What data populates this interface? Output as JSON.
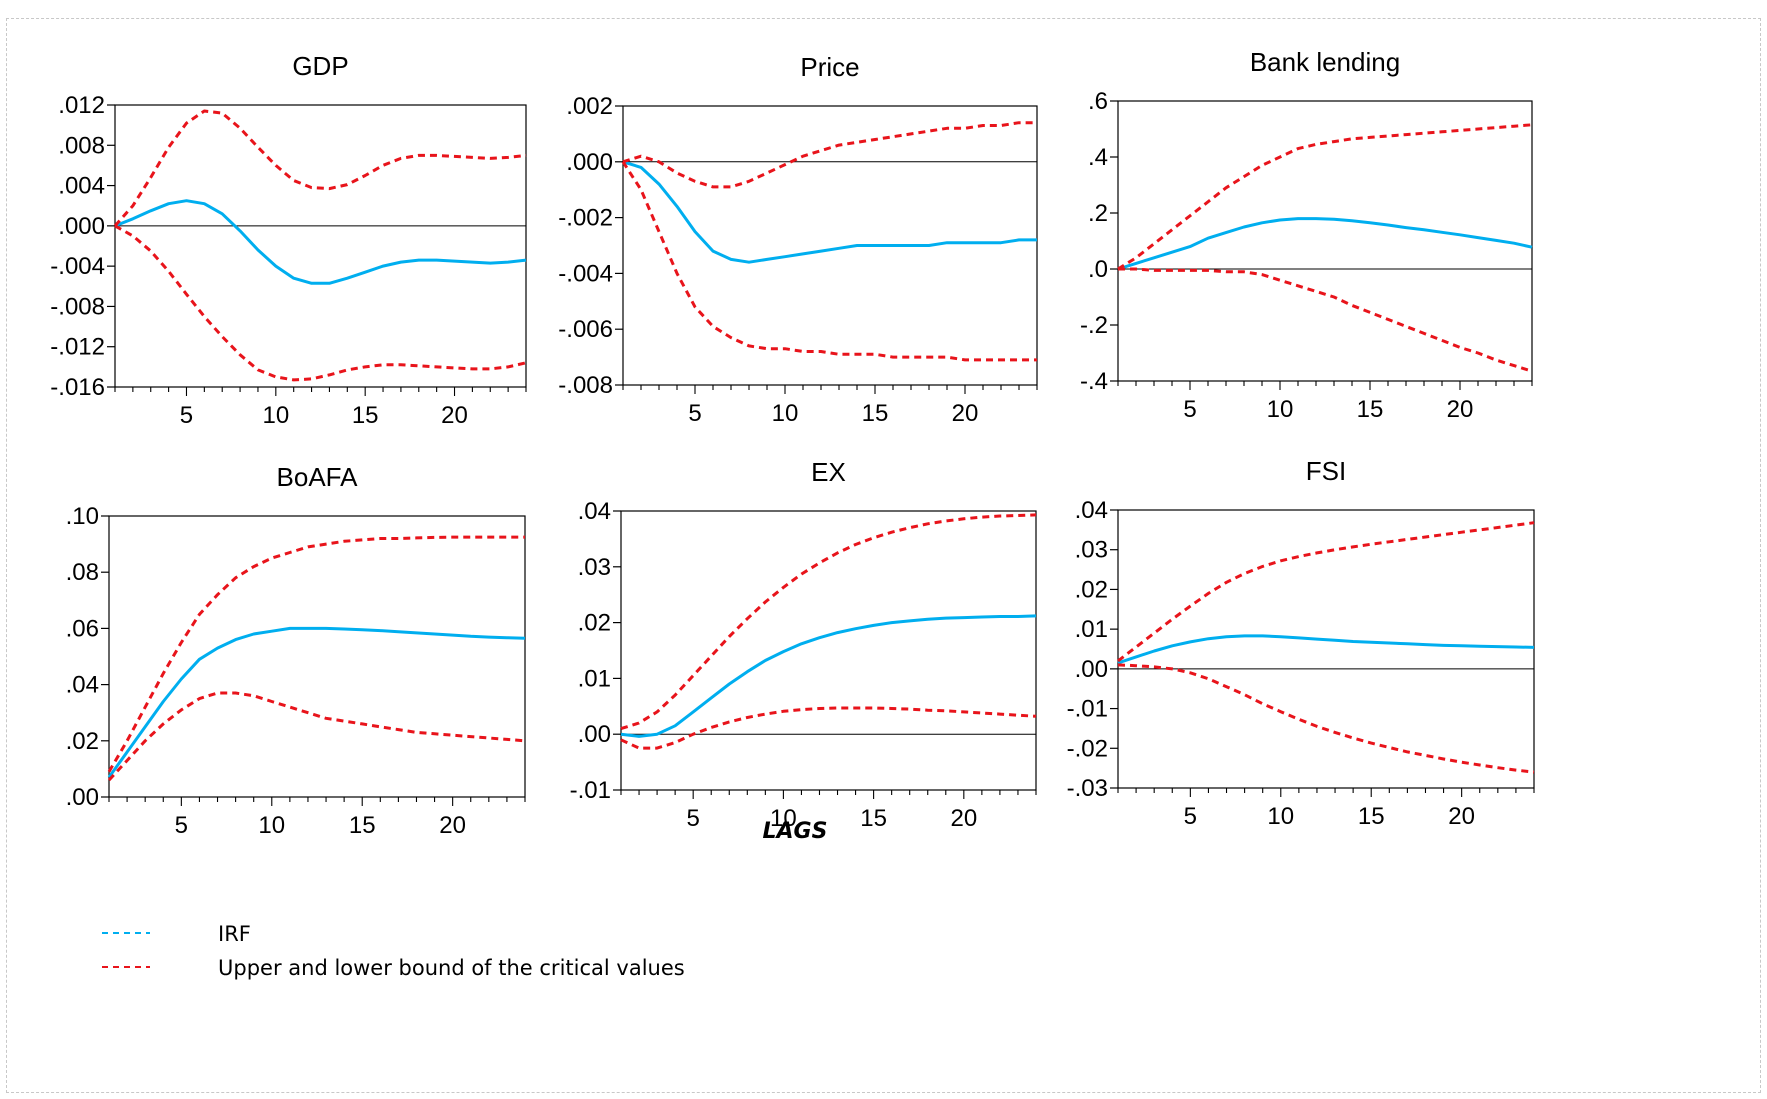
{
  "xlabel": "LAGS",
  "legend": [
    {
      "label": "IRF",
      "color": "#00AEEF",
      "dash": "6,5"
    },
    {
      "label": "Upper and lower bound of the critical values",
      "color": "#E8141B",
      "dash": "6,5"
    }
  ],
  "colors": {
    "irf": "#00AEEF",
    "bounds": "#E8141B",
    "zero": "#000000"
  },
  "chart_data": [
    {
      "type": "line",
      "title": "GDP",
      "x": [
        1,
        2,
        3,
        4,
        5,
        6,
        7,
        8,
        9,
        10,
        11,
        12,
        13,
        14,
        15,
        16,
        17,
        18,
        19,
        20,
        21,
        22,
        23,
        24
      ],
      "xlim": [
        1,
        24
      ],
      "xticks": [
        5,
        10,
        15,
        20
      ],
      "ylim": [
        -0.016,
        0.012
      ],
      "yticks": [
        -0.016,
        -0.012,
        -0.008,
        -0.004,
        0.0,
        0.004,
        0.008,
        0.012
      ],
      "yticklabels": [
        "-.016",
        "-.012",
        "-.008",
        "-.004",
        ".000",
        ".004",
        ".008",
        ".012"
      ],
      "series": [
        {
          "role": "irf",
          "values": [
            0.0,
            0.0007,
            0.0015,
            0.0022,
            0.0025,
            0.0022,
            0.0012,
            -0.0005,
            -0.0024,
            -0.004,
            -0.0052,
            -0.0057,
            -0.0057,
            -0.0052,
            -0.0046,
            -0.004,
            -0.0036,
            -0.0034,
            -0.0034,
            -0.0035,
            -0.0036,
            -0.0037,
            -0.0036,
            -0.0034
          ]
        },
        {
          "role": "upper",
          "values": [
            0.0,
            0.002,
            0.0048,
            0.0078,
            0.0102,
            0.0114,
            0.0112,
            0.0097,
            0.0078,
            0.006,
            0.0045,
            0.0038,
            0.0037,
            0.0041,
            0.005,
            0.006,
            0.0067,
            0.007,
            0.007,
            0.0069,
            0.0068,
            0.0067,
            0.0068,
            0.007
          ]
        },
        {
          "role": "lower",
          "values": [
            0.0,
            -0.001,
            -0.0025,
            -0.0045,
            -0.0068,
            -0.009,
            -0.011,
            -0.0128,
            -0.0143,
            -0.015,
            -0.0153,
            -0.0152,
            -0.0148,
            -0.0143,
            -0.014,
            -0.0138,
            -0.0138,
            -0.0139,
            -0.014,
            -0.0141,
            -0.0142,
            -0.0142,
            -0.014,
            -0.0136
          ]
        }
      ]
    },
    {
      "type": "line",
      "title": "Price",
      "x": [
        1,
        2,
        3,
        4,
        5,
        6,
        7,
        8,
        9,
        10,
        11,
        12,
        13,
        14,
        15,
        16,
        17,
        18,
        19,
        20,
        21,
        22,
        23,
        24
      ],
      "xlim": [
        1,
        24
      ],
      "xticks": [
        5,
        10,
        15,
        20
      ],
      "ylim": [
        -0.008,
        0.002
      ],
      "yticks": [
        -0.008,
        -0.006,
        -0.004,
        -0.002,
        0.0,
        0.002
      ],
      "yticklabels": [
        "-.008",
        "-.006",
        "-.004",
        "-.002",
        ".000",
        ".002"
      ],
      "series": [
        {
          "role": "irf",
          "values": [
            0.0,
            -0.0002,
            -0.0008,
            -0.0016,
            -0.0025,
            -0.0032,
            -0.0035,
            -0.0036,
            -0.0035,
            -0.0034,
            -0.0033,
            -0.0032,
            -0.0031,
            -0.003,
            -0.003,
            -0.003,
            -0.003,
            -0.003,
            -0.0029,
            -0.0029,
            -0.0029,
            -0.0029,
            -0.0028,
            -0.0028
          ]
        },
        {
          "role": "upper",
          "values": [
            0.0,
            0.0002,
            0.0,
            -0.0004,
            -0.0007,
            -0.0009,
            -0.0009,
            -0.0007,
            -0.0004,
            -0.0001,
            0.0002,
            0.0004,
            0.0006,
            0.0007,
            0.0008,
            0.0009,
            0.001,
            0.0011,
            0.0012,
            0.0012,
            0.0013,
            0.0013,
            0.0014,
            0.0014
          ]
        },
        {
          "role": "lower",
          "values": [
            0.0,
            -0.001,
            -0.0025,
            -0.004,
            -0.0052,
            -0.0059,
            -0.0063,
            -0.0066,
            -0.0067,
            -0.0067,
            -0.0068,
            -0.0068,
            -0.0069,
            -0.0069,
            -0.0069,
            -0.007,
            -0.007,
            -0.007,
            -0.007,
            -0.0071,
            -0.0071,
            -0.0071,
            -0.0071,
            -0.0071
          ]
        }
      ]
    },
    {
      "type": "line",
      "title": "Bank lending",
      "x": [
        1,
        2,
        3,
        4,
        5,
        6,
        7,
        8,
        9,
        10,
        11,
        12,
        13,
        14,
        15,
        16,
        17,
        18,
        19,
        20,
        21,
        22,
        23,
        24
      ],
      "xlim": [
        1,
        24
      ],
      "xticks": [
        5,
        10,
        15,
        20
      ],
      "ylim": [
        -0.4,
        0.6
      ],
      "yticks": [
        -0.4,
        -0.2,
        0.0,
        0.2,
        0.4,
        0.6
      ],
      "yticklabels": [
        "-.4",
        "-.2",
        ".0",
        ".2",
        ".4",
        ".6"
      ],
      "series": [
        {
          "role": "irf",
          "values": [
            0.0,
            0.02,
            0.04,
            0.06,
            0.08,
            0.11,
            0.13,
            0.15,
            0.165,
            0.175,
            0.18,
            0.18,
            0.178,
            0.172,
            0.165,
            0.157,
            0.148,
            0.14,
            0.131,
            0.122,
            0.112,
            0.102,
            0.092,
            0.078
          ]
        },
        {
          "role": "upper",
          "values": [
            0.0,
            0.04,
            0.09,
            0.14,
            0.19,
            0.24,
            0.29,
            0.33,
            0.37,
            0.4,
            0.43,
            0.445,
            0.455,
            0.465,
            0.47,
            0.475,
            0.48,
            0.485,
            0.49,
            0.495,
            0.5,
            0.505,
            0.51,
            0.515
          ]
        },
        {
          "role": "lower",
          "values": [
            0.0,
            0.0,
            -0.005,
            -0.005,
            -0.005,
            -0.005,
            -0.01,
            -0.01,
            -0.02,
            -0.04,
            -0.06,
            -0.08,
            -0.1,
            -0.13,
            -0.155,
            -0.18,
            -0.205,
            -0.23,
            -0.255,
            -0.28,
            -0.3,
            -0.325,
            -0.345,
            -0.365
          ]
        }
      ]
    },
    {
      "type": "line",
      "title": "BoAFA",
      "x": [
        1,
        2,
        3,
        4,
        5,
        6,
        7,
        8,
        9,
        10,
        11,
        12,
        13,
        14,
        15,
        16,
        17,
        18,
        19,
        20,
        21,
        22,
        23,
        24
      ],
      "xlim": [
        1,
        24
      ],
      "xticks": [
        5,
        10,
        15,
        20
      ],
      "ylim": [
        0.0,
        0.1
      ],
      "yticks": [
        0.0,
        0.02,
        0.04,
        0.06,
        0.08,
        0.1
      ],
      "yticklabels": [
        ".00",
        ".02",
        ".04",
        ".06",
        ".08",
        ".10"
      ],
      "series": [
        {
          "role": "irf",
          "values": [
            0.007,
            0.016,
            0.025,
            0.034,
            0.042,
            0.049,
            0.053,
            0.056,
            0.058,
            0.059,
            0.06,
            0.06,
            0.06,
            0.0598,
            0.0595,
            0.0592,
            0.0588,
            0.0584,
            0.058,
            0.0576,
            0.0572,
            0.0569,
            0.0567,
            0.0565
          ]
        },
        {
          "role": "upper",
          "values": [
            0.009,
            0.02,
            0.032,
            0.044,
            0.055,
            0.065,
            0.072,
            0.078,
            0.082,
            0.085,
            0.087,
            0.089,
            0.09,
            0.091,
            0.0915,
            0.092,
            0.092,
            0.0922,
            0.0924,
            0.0925,
            0.0925,
            0.0925,
            0.0925,
            0.0925
          ]
        },
        {
          "role": "lower",
          "values": [
            0.006,
            0.013,
            0.02,
            0.026,
            0.031,
            0.035,
            0.037,
            0.037,
            0.036,
            0.034,
            0.032,
            0.03,
            0.028,
            0.027,
            0.026,
            0.025,
            0.024,
            0.023,
            0.0225,
            0.022,
            0.0215,
            0.021,
            0.0205,
            0.02
          ]
        }
      ]
    },
    {
      "type": "line",
      "title": "EX",
      "x": [
        1,
        2,
        3,
        4,
        5,
        6,
        7,
        8,
        9,
        10,
        11,
        12,
        13,
        14,
        15,
        16,
        17,
        18,
        19,
        20,
        21,
        22,
        23,
        24
      ],
      "xlim": [
        1,
        24
      ],
      "xticks": [
        5,
        10,
        15,
        20
      ],
      "ylim": [
        -0.01,
        0.04
      ],
      "yticks": [
        -0.01,
        0.0,
        0.01,
        0.02,
        0.03,
        0.04
      ],
      "yticklabels": [
        "-.01",
        ".00",
        ".01",
        ".02",
        ".03",
        ".04"
      ],
      "series": [
        {
          "role": "irf",
          "values": [
            0.0,
            -0.0004,
            0.0,
            0.0015,
            0.004,
            0.0065,
            0.009,
            0.0112,
            0.0132,
            0.0148,
            0.0162,
            0.0173,
            0.0182,
            0.0189,
            0.0195,
            0.02,
            0.0203,
            0.0206,
            0.0208,
            0.0209,
            0.021,
            0.0211,
            0.0211,
            0.0212
          ]
        },
        {
          "role": "upper",
          "values": [
            0.001,
            0.002,
            0.004,
            0.007,
            0.0105,
            0.014,
            0.0175,
            0.0207,
            0.0237,
            0.0263,
            0.0287,
            0.0307,
            0.0325,
            0.034,
            0.0352,
            0.0362,
            0.037,
            0.0377,
            0.0382,
            0.0386,
            0.0389,
            0.0391,
            0.0392,
            0.0393
          ]
        },
        {
          "role": "lower",
          "values": [
            -0.001,
            -0.0025,
            -0.0025,
            -0.0015,
            0.0,
            0.0012,
            0.0022,
            0.003,
            0.0036,
            0.0041,
            0.0044,
            0.0046,
            0.0047,
            0.0047,
            0.0047,
            0.0046,
            0.0045,
            0.0043,
            0.0042,
            0.004,
            0.0038,
            0.0036,
            0.0034,
            0.0032
          ]
        }
      ]
    },
    {
      "type": "line",
      "title": "FSI",
      "x": [
        1,
        2,
        3,
        4,
        5,
        6,
        7,
        8,
        9,
        10,
        11,
        12,
        13,
        14,
        15,
        16,
        17,
        18,
        19,
        20,
        21,
        22,
        23,
        24
      ],
      "xlim": [
        1,
        24
      ],
      "xticks": [
        5,
        10,
        15,
        20
      ],
      "ylim": [
        -0.03,
        0.04
      ],
      "yticks": [
        -0.03,
        -0.02,
        -0.01,
        0.0,
        0.01,
        0.02,
        0.03,
        0.04
      ],
      "yticklabels": [
        "-.03",
        "-.02",
        "-.01",
        ".00",
        ".01",
        ".02",
        ".03",
        ".04"
      ],
      "series": [
        {
          "role": "irf",
          "values": [
            0.0015,
            0.003,
            0.0045,
            0.0058,
            0.0068,
            0.0076,
            0.0081,
            0.0083,
            0.0083,
            0.0081,
            0.0078,
            0.0075,
            0.0072,
            0.0069,
            0.0067,
            0.0065,
            0.0063,
            0.0061,
            0.0059,
            0.0058,
            0.0057,
            0.0056,
            0.0055,
            0.0054
          ]
        },
        {
          "role": "upper",
          "values": [
            0.002,
            0.0055,
            0.009,
            0.0125,
            0.0158,
            0.019,
            0.0218,
            0.024,
            0.0258,
            0.0272,
            0.0283,
            0.0292,
            0.03,
            0.0307,
            0.0314,
            0.032,
            0.0326,
            0.0332,
            0.0338,
            0.0344,
            0.035,
            0.0356,
            0.0362,
            0.0368
          ]
        },
        {
          "role": "lower",
          "values": [
            0.001,
            0.0008,
            0.0005,
            0.0,
            -0.001,
            -0.0025,
            -0.0045,
            -0.0065,
            -0.0088,
            -0.0108,
            -0.0127,
            -0.0145,
            -0.016,
            -0.0174,
            -0.0187,
            -0.0198,
            -0.0209,
            -0.0218,
            -0.0227,
            -0.0235,
            -0.0242,
            -0.0249,
            -0.0255,
            -0.026
          ]
        }
      ]
    }
  ]
}
